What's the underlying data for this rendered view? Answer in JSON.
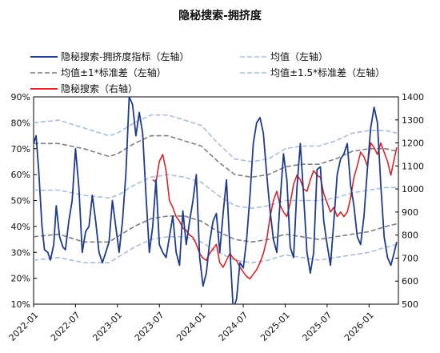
{
  "chart_data": {
    "type": "line",
    "title": "隐秘搜索-拥挤度",
    "legend": {
      "placement": "top",
      "columns": 2,
      "entries": [
        {
          "key": "crowding",
          "label": "隐秘搜索-拥挤度指标（左轴）",
          "color": "#1f3b8c",
          "style": "solid"
        },
        {
          "key": "mean",
          "label": "均值（左轴）",
          "color": "#a9bedb",
          "style": "dashed"
        },
        {
          "key": "band1",
          "label": "均值±1*标准差（左轴）",
          "color": "#7f7f7f",
          "style": "dashed"
        },
        {
          "key": "band15",
          "label": "均值±1.5*标准差（左轴）",
          "color": "#a9bedb",
          "style": "dashed"
        },
        {
          "key": "search",
          "label": "隐秘搜索（右轴）",
          "color": "#d9262b",
          "style": "solid"
        }
      ]
    },
    "x_ticks": [
      "2022-01",
      "2022-07",
      "2023-01",
      "2023-07",
      "2024-01",
      "2024-07",
      "2025-01",
      "2025-07",
      "2026-01"
    ],
    "x_range": [
      "2022-01",
      "2026-05"
    ],
    "y_left": {
      "min": 0.1,
      "max": 0.9,
      "ticks": [
        "10%",
        "20%",
        "30%",
        "40%",
        "50%",
        "60%",
        "70%",
        "80%",
        "90%"
      ]
    },
    "y_right": {
      "min": 500,
      "max": 1400,
      "ticks": [
        "500",
        "600",
        "700",
        "800",
        "900",
        "1000",
        "1100",
        "1200",
        "1300",
        "1400"
      ]
    },
    "grid": false,
    "series": {
      "crowding": {
        "axis": "left",
        "t": [
          2022.0,
          2022.03,
          2022.06,
          2022.1,
          2022.13,
          2022.17,
          2022.2,
          2022.24,
          2022.27,
          2022.31,
          2022.35,
          2022.38,
          2022.42,
          2022.46,
          2022.5,
          2022.54,
          2022.58,
          2022.62,
          2022.66,
          2022.7,
          2022.74,
          2022.78,
          2022.82,
          2022.86,
          2022.9,
          2022.94,
          2022.98,
          2023.02,
          2023.06,
          2023.1,
          2023.14,
          2023.18,
          2023.22,
          2023.26,
          2023.3,
          2023.34,
          2023.38,
          2023.42,
          2023.46,
          2023.5,
          2023.54,
          2023.58,
          2023.62,
          2023.66,
          2023.7,
          2023.74,
          2023.78,
          2023.82,
          2023.86,
          2023.9,
          2023.94,
          2023.98,
          2024.02,
          2024.06,
          2024.1,
          2024.14,
          2024.18,
          2024.22,
          2024.26,
          2024.3,
          2024.34,
          2024.38,
          2024.42,
          2024.46,
          2024.5,
          2024.54,
          2024.58,
          2024.62,
          2024.66,
          2024.7,
          2024.74,
          2024.78,
          2024.82,
          2024.86,
          2024.9,
          2024.94,
          2024.98,
          2025.02,
          2025.06,
          2025.1,
          2025.14,
          2025.18,
          2025.22,
          2025.26,
          2025.3,
          2025.34,
          2025.38,
          2025.42,
          2025.46,
          2025.5,
          2025.54,
          2025.58,
          2025.62,
          2025.66,
          2025.7,
          2025.74,
          2025.78,
          2025.82,
          2025.86,
          2025.9,
          2025.94,
          2025.98,
          2026.02,
          2026.06,
          2026.1,
          2026.14,
          2026.18,
          2026.22,
          2026.26,
          2026.3,
          2026.33
        ],
        "v": [
          0.72,
          0.75,
          0.62,
          0.4,
          0.31,
          0.3,
          0.27,
          0.33,
          0.48,
          0.36,
          0.32,
          0.31,
          0.42,
          0.5,
          0.7,
          0.55,
          0.3,
          0.38,
          0.4,
          0.52,
          0.42,
          0.3,
          0.26,
          0.3,
          0.34,
          0.5,
          0.4,
          0.3,
          0.42,
          0.6,
          0.9,
          0.87,
          0.75,
          0.84,
          0.76,
          0.52,
          0.3,
          0.4,
          0.58,
          0.33,
          0.3,
          0.28,
          0.36,
          0.44,
          0.3,
          0.25,
          0.46,
          0.33,
          0.42,
          0.5,
          0.6,
          0.28,
          0.17,
          0.22,
          0.34,
          0.42,
          0.45,
          0.3,
          0.45,
          0.58,
          0.32,
          0.08,
          0.12,
          0.26,
          0.24,
          0.35,
          0.52,
          0.72,
          0.8,
          0.82,
          0.76,
          0.6,
          0.46,
          0.35,
          0.3,
          0.5,
          0.68,
          0.58,
          0.32,
          0.28,
          0.55,
          0.72,
          0.52,
          0.3,
          0.22,
          0.3,
          0.62,
          0.63,
          0.42,
          0.33,
          0.25,
          0.42,
          0.6,
          0.66,
          0.68,
          0.72,
          0.56,
          0.48,
          0.36,
          0.33,
          0.44,
          0.62,
          0.78,
          0.86,
          0.8,
          0.56,
          0.36,
          0.28,
          0.25,
          0.3,
          0.34
        ]
      },
      "search": {
        "axis": "right",
        "t": [
          2023.42,
          2023.46,
          2023.5,
          2023.54,
          2023.58,
          2023.62,
          2023.66,
          2023.7,
          2023.74,
          2023.78,
          2023.82,
          2023.86,
          2023.9,
          2023.94,
          2023.98,
          2024.02,
          2024.06,
          2024.1,
          2024.14,
          2024.18,
          2024.22,
          2024.26,
          2024.3,
          2024.34,
          2024.38,
          2024.42,
          2024.46,
          2024.5,
          2024.54,
          2024.58,
          2024.62,
          2024.66,
          2024.7,
          2024.74,
          2024.78,
          2024.82,
          2024.86,
          2024.9,
          2024.94,
          2024.98,
          2025.02,
          2025.06,
          2025.1,
          2025.14,
          2025.18,
          2025.22,
          2025.26,
          2025.3,
          2025.34,
          2025.38,
          2025.42,
          2025.46,
          2025.5,
          2025.54,
          2025.58,
          2025.62,
          2025.66,
          2025.7,
          2025.74,
          2025.78,
          2025.82,
          2025.86,
          2025.9,
          2025.94,
          2025.98,
          2026.02,
          2026.06,
          2026.1,
          2026.14,
          2026.18,
          2026.22,
          2026.26,
          2026.3,
          2026.33
        ],
        "v": [
          1040,
          1030,
          1120,
          1150,
          1080,
          950,
          920,
          880,
          860,
          830,
          820,
          800,
          790,
          760,
          720,
          700,
          690,
          720,
          740,
          760,
          680,
          660,
          690,
          720,
          700,
          690,
          660,
          640,
          620,
          610,
          630,
          650,
          680,
          720,
          780,
          880,
          950,
          990,
          930,
          900,
          880,
          940,
          1020,
          1060,
          1040,
          1000,
          990,
          1040,
          1080,
          1060,
          1050,
          980,
          940,
          900,
          920,
          880,
          900,
          880,
          900,
          960,
          1050,
          1100,
          1160,
          1140,
          1100,
          1200,
          1180,
          1150,
          1200,
          1160,
          1120,
          1060,
          1130,
          1180
        ]
      },
      "mean": {
        "axis": "left",
        "t": [
          2022.0,
          2022.3,
          2022.6,
          2022.9,
          2023.0,
          2023.2,
          2023.4,
          2023.6,
          2023.8,
          2024.0,
          2024.2,
          2024.4,
          2024.6,
          2024.8,
          2025.0,
          2025.2,
          2025.4,
          2025.6,
          2025.8,
          2026.0,
          2026.2,
          2026.33
        ],
        "v": [
          0.54,
          0.54,
          0.52,
          0.51,
          0.52,
          0.56,
          0.59,
          0.6,
          0.59,
          0.57,
          0.52,
          0.48,
          0.47,
          0.48,
          0.5,
          0.5,
          0.5,
          0.51,
          0.53,
          0.54,
          0.55,
          0.55
        ]
      },
      "band1_upper": {
        "axis": "left",
        "t": [
          2022.0,
          2022.3,
          2022.6,
          2022.9,
          2023.0,
          2023.2,
          2023.4,
          2023.6,
          2023.8,
          2024.0,
          2024.2,
          2024.4,
          2024.6,
          2024.8,
          2025.0,
          2025.2,
          2025.4,
          2025.6,
          2025.8,
          2026.0,
          2026.2,
          2026.33
        ],
        "v": [
          0.72,
          0.72,
          0.7,
          0.67,
          0.68,
          0.72,
          0.75,
          0.75,
          0.73,
          0.71,
          0.65,
          0.6,
          0.59,
          0.6,
          0.63,
          0.64,
          0.64,
          0.66,
          0.69,
          0.7,
          0.7,
          0.69
        ]
      },
      "band1_lower": {
        "axis": "left",
        "t": [
          2022.0,
          2022.3,
          2022.6,
          2022.9,
          2023.0,
          2023.2,
          2023.4,
          2023.6,
          2023.8,
          2024.0,
          2024.2,
          2024.4,
          2024.6,
          2024.8,
          2025.0,
          2025.2,
          2025.4,
          2025.6,
          2025.8,
          2026.0,
          2026.2,
          2026.33
        ],
        "v": [
          0.36,
          0.37,
          0.34,
          0.34,
          0.36,
          0.4,
          0.43,
          0.44,
          0.44,
          0.42,
          0.38,
          0.35,
          0.34,
          0.35,
          0.37,
          0.36,
          0.35,
          0.36,
          0.37,
          0.38,
          0.4,
          0.41
        ]
      },
      "band15_upper": {
        "axis": "left",
        "t": [
          2022.0,
          2022.3,
          2022.6,
          2022.9,
          2023.0,
          2023.2,
          2023.4,
          2023.6,
          2023.8,
          2024.0,
          2024.2,
          2024.4,
          2024.6,
          2024.8,
          2025.0,
          2025.2,
          2025.4,
          2025.6,
          2025.8,
          2026.0,
          2026.2,
          2026.33
        ],
        "v": [
          0.8,
          0.81,
          0.78,
          0.75,
          0.76,
          0.8,
          0.83,
          0.83,
          0.81,
          0.79,
          0.72,
          0.66,
          0.65,
          0.66,
          0.7,
          0.71,
          0.71,
          0.73,
          0.76,
          0.77,
          0.77,
          0.76
        ]
      },
      "band15_lower": {
        "axis": "left",
        "t": [
          2022.0,
          2022.3,
          2022.6,
          2022.9,
          2023.0,
          2023.2,
          2023.4,
          2023.6,
          2023.8,
          2024.0,
          2024.2,
          2024.4,
          2024.6,
          2024.8,
          2025.0,
          2025.2,
          2025.4,
          2025.6,
          2025.8,
          2026.0,
          2026.2,
          2026.33
        ],
        "v": [
          0.27,
          0.28,
          0.26,
          0.26,
          0.28,
          0.32,
          0.35,
          0.36,
          0.36,
          0.34,
          0.3,
          0.27,
          0.26,
          0.27,
          0.29,
          0.28,
          0.27,
          0.28,
          0.29,
          0.3,
          0.32,
          0.33
        ]
      }
    }
  }
}
